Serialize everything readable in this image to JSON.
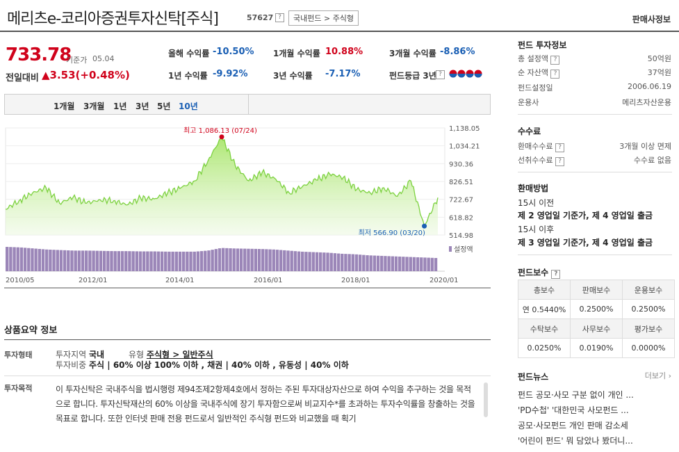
{
  "header": {
    "fund_name": "메리츠e-코리아증권투자신탁[주식]",
    "fund_code": "57627",
    "help": "?",
    "category": "국내펀드 > 주식형",
    "sales_info": "판매사정보"
  },
  "price": {
    "value": "733.78",
    "label": "기준가",
    "date": "05.04",
    "change_label": "전일대비",
    "change": "▲3.53(+0.48%)"
  },
  "returns": [
    {
      "label": "올해 수익률",
      "value": "-10.50%",
      "dir": "down"
    },
    {
      "label": "1개월 수익률",
      "value": "10.88%",
      "dir": "up"
    },
    {
      "label": "3개월 수익률",
      "value": "-8.86%",
      "dir": "down"
    },
    {
      "label": "1년 수익률",
      "value": "-9.92%",
      "dir": "down"
    },
    {
      "label": "3년 수익률",
      "value": "-7.17%",
      "dir": "down"
    },
    {
      "label": "펀드등급 3년",
      "value": "",
      "dir": "none"
    }
  ],
  "tabs": [
    "1개월",
    "3개월",
    "1년",
    "3년",
    "5년",
    "10년"
  ],
  "active_tab": "10년",
  "chart_data": {
    "type": "area",
    "title": "",
    "y_ticks": [
      "1,138.05",
      "1,034.21",
      "930.36",
      "826.51",
      "722.67",
      "618.82",
      "514.98"
    ],
    "ylim": [
      514.98,
      1138.05
    ],
    "x_ticks": [
      "2010/05",
      "2012/01",
      "2014/01",
      "2016/01",
      "2018/01",
      "2020/01"
    ],
    "max_label": "최고 1,086.13 (07/24)",
    "min_label": "최저 566.90 (03/20)",
    "volume_label": "설정액",
    "x": [
      "2010/05",
      "2010/09",
      "2011/01",
      "2011/05",
      "2011/09",
      "2012/01",
      "2012/05",
      "2012/09",
      "2013/01",
      "2013/05",
      "2013/09",
      "2014/01",
      "2014/05",
      "2014/09",
      "2015/01",
      "2015/04",
      "2015/07",
      "2015/09",
      "2016/01",
      "2016/05",
      "2016/09",
      "2017/01",
      "2017/05",
      "2017/09",
      "2018/01",
      "2018/05",
      "2018/09",
      "2019/01",
      "2019/05",
      "2019/09",
      "2020/01",
      "2020/03",
      "2020/05"
    ],
    "values": [
      665,
      715,
      760,
      790,
      700,
      735,
      700,
      720,
      715,
      690,
      730,
      725,
      760,
      790,
      830,
      950,
      1086,
      920,
      830,
      880,
      840,
      760,
      800,
      835,
      870,
      850,
      780,
      760,
      790,
      740,
      830,
      567,
      733
    ],
    "volume": [
      0.92,
      0.9,
      0.86,
      0.82,
      0.8,
      0.78,
      0.78,
      0.77,
      0.76,
      0.76,
      0.75,
      0.75,
      0.74,
      0.74,
      0.74,
      0.78,
      0.88,
      0.86,
      0.85,
      0.84,
      0.82,
      0.78,
      0.74,
      0.72,
      0.7,
      0.66,
      0.64,
      0.6,
      0.58,
      0.56,
      0.54,
      0.52,
      0.5
    ],
    "color": "#7cd13f"
  },
  "summary": {
    "title": "상품요약 정보",
    "type_label": "투자형태",
    "region_label": "투자지역",
    "region_value": "국내",
    "kind_label": "유형",
    "kind_value": "주식형 > 일반주식",
    "weight_label": "투자비중",
    "weight_value": "주식 | 60% 이상 100% 이하 , 채권 | 40% 이하 , 유동성 | 40% 이하",
    "purpose_label": "투자목적",
    "purpose_text": "이 투자신탁은 국내주식을 법시행령 제94조제2항제4호에서 정하는 주된 투자대상자산으로 하여 수익을 추구하는 것을 목적으로 합니다. 투자신탁재산의 60% 이상을 국내주식에 장기 투자함으로써 비교지수*를 초과하는 투자수익률을 창출하는 것을 목표로 합니다. 또한 인터넷 판매 전용 펀드로서 일반적인 주식형 펀드와 비교했을 때 획기"
  },
  "fund_info": {
    "title": "펀드 투자정보",
    "rows": [
      {
        "label": "총 설정액",
        "value": "50억원",
        "help": true
      },
      {
        "label": "순 자산액",
        "value": "37억원",
        "help": true
      },
      {
        "label": "펀드설정일",
        "value": "2006.06.19",
        "help": false
      },
      {
        "label": "운용사",
        "value": "메리츠자산운용",
        "help": false
      }
    ]
  },
  "fees": {
    "title": "수수료",
    "rows": [
      {
        "label": "환매수수료",
        "value": "3개월 이상 면제"
      },
      {
        "label": "선취수수료",
        "value": "수수료 없음"
      }
    ]
  },
  "redemption": {
    "title": "환매방법",
    "l1": "15시 이전",
    "l2": "제 2 영업일 기준가, 제 4 영업일 출금",
    "l3": "15시 이후",
    "l4": "제 3 영업일 기준가, 제 4 영업일 출금"
  },
  "compensation": {
    "title": "펀드보수",
    "head1": [
      "총보수",
      "판매보수",
      "운용보수"
    ],
    "row1": [
      "연 0.5440%",
      "0.2500%",
      "0.2500%"
    ],
    "head2": [
      "수탁보수",
      "사무보수",
      "평가보수"
    ],
    "row2": [
      "0.0250%",
      "0.0190%",
      "0.0000%"
    ]
  },
  "news": {
    "title": "펀드뉴스",
    "more": "더보기",
    "items": [
      "펀드 공모·사모 구분 없이 개인 ...",
      "'PD수첩' '대한민국 사모펀드 ...",
      "공모·사모펀드 개인 판매 감소세",
      "'어린이 펀드' 뭐 담았나 봤더니..."
    ]
  }
}
